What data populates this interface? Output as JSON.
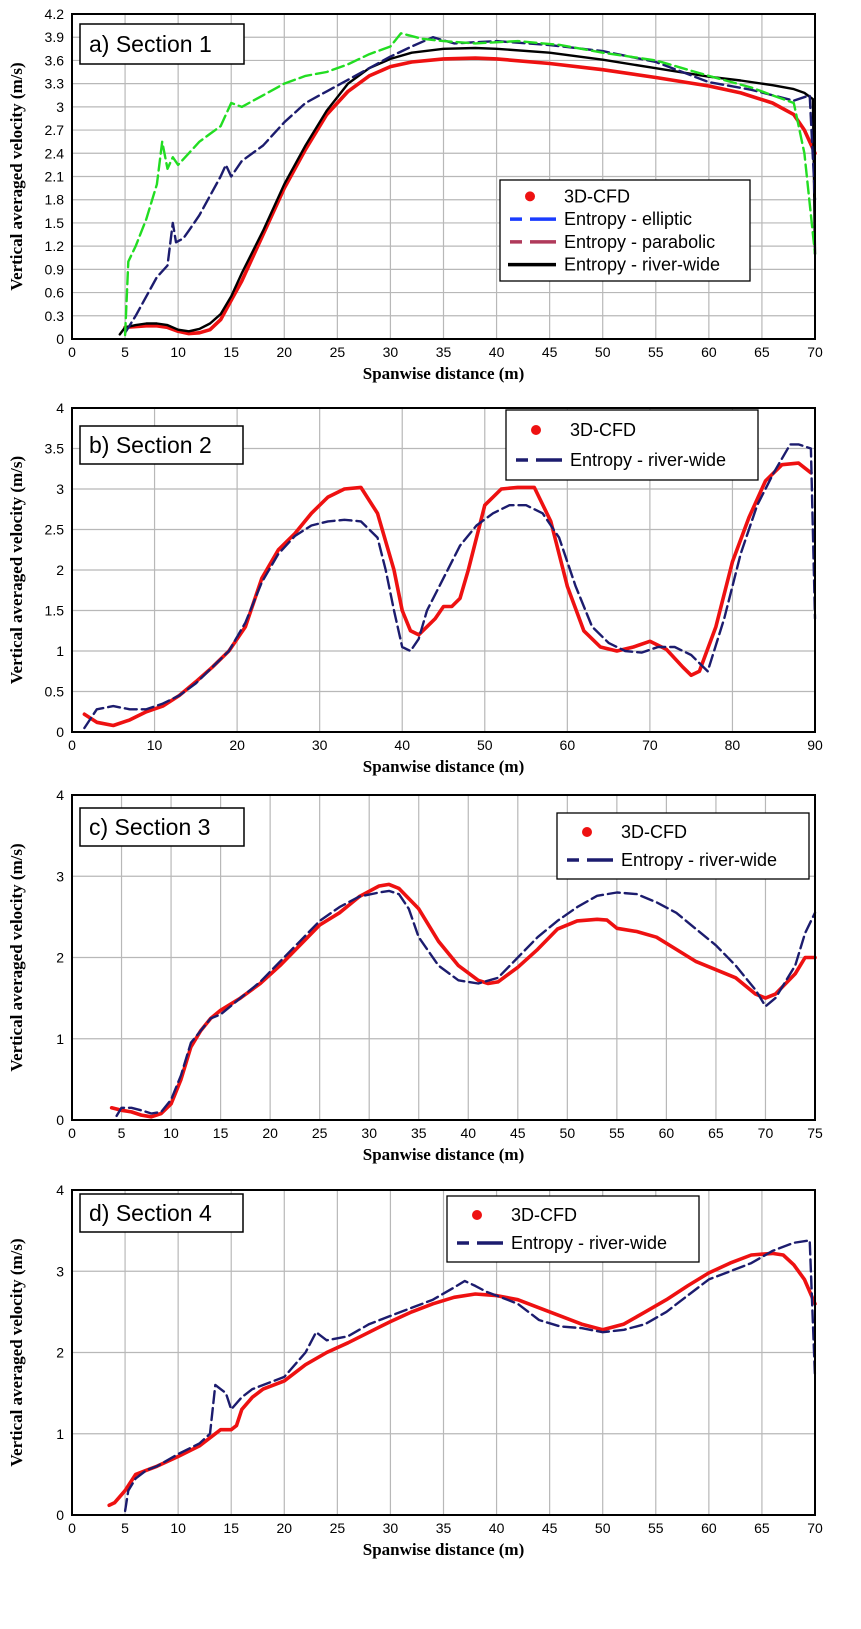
{
  "colors": {
    "cfd": "#ee1111",
    "river_wide_dash": "#1c1c6e",
    "river_wide_solid": "#000000",
    "elliptic": "#1a3cff",
    "parabolic": "#b03a5b",
    "green": "#22dd22",
    "grid": "#b8b8b8"
  },
  "chart_data": [
    {
      "type": "line",
      "panel_label": "a) Section 1",
      "xlabel": "Spanwise distance (m)",
      "ylabel": "Vertical averaged velocity (m/s)",
      "xlim": [
        0,
        70
      ],
      "ylim": [
        0,
        4.2
      ],
      "xticks": [
        "0",
        "5",
        "10",
        "15",
        "20",
        "25",
        "30",
        "35",
        "40",
        "45",
        "50",
        "55",
        "60",
        "65",
        "70"
      ],
      "yticks": [
        "0",
        "0.3",
        "0.6",
        "0.9",
        "1.2",
        "1.5",
        "1.8",
        "2.1",
        "2.4",
        "2.7",
        "3",
        "3.3",
        "3.6",
        "3.9",
        "4.2"
      ],
      "grid": true,
      "legend_position": "center-right",
      "legend": [
        {
          "label": "3D-CFD",
          "style": "dot",
          "color": "#ee1111"
        },
        {
          "label": "Entropy - elliptic",
          "style": "dash",
          "color": "#1a3cff"
        },
        {
          "label": "Entropy - parabolic",
          "style": "dash",
          "color": "#b03a5b"
        },
        {
          "label": "Entropy - river-wide",
          "style": "solid",
          "color": "#000000"
        }
      ],
      "series": [
        {
          "name": "3D-CFD",
          "color": "#ee1111",
          "style": "solid",
          "x": [
            5,
            6,
            7,
            8,
            9,
            10,
            11,
            12,
            13,
            14,
            15,
            16,
            18,
            20,
            22,
            24,
            26,
            28,
            30,
            32,
            35,
            38,
            40,
            45,
            50,
            55,
            60,
            63,
            66,
            68,
            69,
            70
          ],
          "y": [
            0.15,
            0.16,
            0.17,
            0.17,
            0.15,
            0.1,
            0.07,
            0.08,
            0.12,
            0.25,
            0.5,
            0.75,
            1.35,
            1.95,
            2.45,
            2.9,
            3.2,
            3.4,
            3.52,
            3.58,
            3.62,
            3.63,
            3.62,
            3.56,
            3.48,
            3.38,
            3.27,
            3.18,
            3.05,
            2.9,
            2.7,
            2.4
          ]
        },
        {
          "color": "#000000",
          "style": "solid",
          "x": [
            4.5,
            5,
            6,
            7,
            8,
            9,
            10,
            11,
            12,
            13,
            14,
            15,
            16,
            18,
            20,
            22,
            24,
            26,
            28,
            30,
            32,
            35,
            38,
            40,
            45,
            50,
            55,
            60,
            63,
            66,
            68,
            69,
            69.8,
            70
          ],
          "y": [
            0.06,
            0.15,
            0.18,
            0.2,
            0.2,
            0.18,
            0.12,
            0.1,
            0.13,
            0.2,
            0.32,
            0.55,
            0.85,
            1.4,
            2.0,
            2.5,
            2.95,
            3.3,
            3.5,
            3.62,
            3.7,
            3.75,
            3.76,
            3.75,
            3.7,
            3.61,
            3.5,
            3.39,
            3.34,
            3.28,
            3.23,
            3.18,
            3.1,
            1.1
          ]
        },
        {
          "color": "#1c1c6e",
          "style": "dash",
          "x": [
            5,
            6,
            7,
            8,
            9,
            9.5,
            9.8,
            10.5,
            11,
            12,
            13,
            14,
            14.5,
            15,
            16,
            18,
            20,
            22,
            24,
            26,
            28,
            30,
            32,
            34,
            36,
            40,
            45,
            50,
            55,
            60,
            64,
            68,
            69.5,
            70
          ],
          "y": [
            0.08,
            0.3,
            0.55,
            0.8,
            0.95,
            1.5,
            1.25,
            1.3,
            1.4,
            1.6,
            1.85,
            2.1,
            2.25,
            2.1,
            2.3,
            2.5,
            2.8,
            3.05,
            3.2,
            3.35,
            3.5,
            3.65,
            3.78,
            3.9,
            3.82,
            3.85,
            3.8,
            3.72,
            3.58,
            3.32,
            3.22,
            3.08,
            3.15,
            1.8
          ]
        },
        {
          "color": "#22dd22",
          "style": "dash",
          "x": [
            5,
            5.3,
            6,
            7,
            8,
            8.5,
            9,
            9.5,
            10,
            11,
            12,
            13,
            14,
            15,
            16,
            18,
            20,
            22,
            24,
            26,
            28,
            30,
            31,
            33,
            35,
            38,
            42,
            46,
            50,
            55,
            60,
            64,
            66,
            68,
            69,
            70
          ],
          "y": [
            0.05,
            1.0,
            1.2,
            1.55,
            2.0,
            2.55,
            2.2,
            2.35,
            2.25,
            2.4,
            2.55,
            2.65,
            2.75,
            3.05,
            3.0,
            3.15,
            3.3,
            3.4,
            3.45,
            3.55,
            3.68,
            3.78,
            3.95,
            3.88,
            3.85,
            3.82,
            3.85,
            3.8,
            3.7,
            3.6,
            3.4,
            3.25,
            3.15,
            3.05,
            2.4,
            1.1
          ]
        }
      ]
    },
    {
      "type": "line",
      "panel_label": "b) Section 2",
      "xlabel": "Spanwise distance (m)",
      "ylabel": "Vertical averaged velocity (m/s)",
      "xlim": [
        0,
        90
      ],
      "ylim": [
        0,
        4
      ],
      "xticks": [
        "0",
        "10",
        "20",
        "30",
        "40",
        "50",
        "60",
        "70",
        "80",
        "90"
      ],
      "yticks": [
        "0",
        "0.5",
        "1",
        "1.5",
        "2",
        "2.5",
        "3",
        "3.5",
        "4"
      ],
      "grid": true,
      "legend_position": "top-right",
      "legend": [
        {
          "label": "3D-CFD",
          "style": "dot",
          "color": "#ee1111"
        },
        {
          "label": "Entropy - river-wide",
          "style": "dash",
          "color": "#1c1c6e"
        }
      ],
      "series": [
        {
          "name": "3D-CFD",
          "color": "#ee1111",
          "style": "solid",
          "x": [
            1.5,
            3,
            5,
            7,
            9,
            11,
            13,
            15,
            17,
            19,
            21,
            23,
            25,
            27,
            29,
            31,
            33,
            35,
            37,
            39,
            40,
            41,
            42,
            43,
            44,
            45,
            46,
            47,
            48,
            50,
            52,
            54,
            56,
            58,
            60,
            62,
            64,
            66,
            68,
            70,
            72,
            74,
            75,
            76,
            78,
            80,
            82,
            84,
            86,
            88,
            89.5
          ],
          "y": [
            0.22,
            0.12,
            0.08,
            0.15,
            0.25,
            0.32,
            0.45,
            0.62,
            0.8,
            1.0,
            1.3,
            1.9,
            2.25,
            2.45,
            2.7,
            2.9,
            3.0,
            3.02,
            2.7,
            2.0,
            1.5,
            1.25,
            1.2,
            1.3,
            1.4,
            1.55,
            1.55,
            1.65,
            2.0,
            2.8,
            3.0,
            3.02,
            3.02,
            2.6,
            1.8,
            1.25,
            1.05,
            1.0,
            1.05,
            1.12,
            1.02,
            0.8,
            0.7,
            0.75,
            1.3,
            2.1,
            2.65,
            3.1,
            3.3,
            3.32,
            3.2
          ]
        },
        {
          "color": "#1c1c6e",
          "style": "dash",
          "x": [
            1.5,
            3,
            5,
            7,
            9,
            11,
            13,
            15,
            17,
            19,
            21,
            23,
            25,
            27,
            29,
            31,
            33,
            35,
            37,
            38,
            39,
            40,
            41,
            42,
            43,
            45,
            47,
            49,
            51,
            53,
            55,
            57,
            59,
            61,
            63,
            65,
            67,
            69,
            71,
            73,
            75,
            77,
            79,
            81,
            83,
            85,
            87,
            88,
            89.5,
            90
          ],
          "y": [
            0.05,
            0.28,
            0.32,
            0.28,
            0.28,
            0.35,
            0.45,
            0.6,
            0.8,
            1.0,
            1.35,
            1.85,
            2.2,
            2.42,
            2.55,
            2.6,
            2.62,
            2.6,
            2.4,
            2.0,
            1.5,
            1.05,
            1.0,
            1.15,
            1.5,
            1.9,
            2.3,
            2.55,
            2.7,
            2.8,
            2.8,
            2.7,
            2.4,
            1.8,
            1.3,
            1.1,
            1.0,
            0.98,
            1.05,
            1.05,
            0.95,
            0.75,
            1.4,
            2.2,
            2.8,
            3.2,
            3.55,
            3.55,
            3.5,
            1.4
          ]
        }
      ]
    },
    {
      "type": "line",
      "panel_label": "c) Section 3",
      "xlabel": "Spanwise distance (m)",
      "ylabel": "Vertical averaged velocity (m/s)",
      "xlim": [
        0,
        75
      ],
      "ylim": [
        0,
        4
      ],
      "xticks": [
        "0",
        "5",
        "10",
        "15",
        "20",
        "25",
        "30",
        "35",
        "40",
        "45",
        "50",
        "55",
        "60",
        "65",
        "70",
        "75"
      ],
      "yticks": [
        "0",
        "1",
        "2",
        "3",
        "4"
      ],
      "grid": true,
      "legend_position": "top-right",
      "legend": [
        {
          "label": "3D-CFD",
          "style": "dot",
          "color": "#ee1111"
        },
        {
          "label": "Entropy - river-wide",
          "style": "dash",
          "color": "#1c1c6e"
        }
      ],
      "series": [
        {
          "name": "3D-CFD",
          "color": "#ee1111",
          "style": "solid",
          "x": [
            4,
            5,
            6,
            7,
            8,
            9,
            10,
            11,
            12,
            13,
            14,
            15,
            17,
            19,
            21,
            23,
            25,
            27,
            29,
            31,
            32,
            33,
            35,
            37,
            39,
            41,
            42,
            43,
            45,
            47,
            49,
            51,
            53,
            54,
            55,
            57,
            59,
            61,
            63,
            65,
            67,
            69,
            70,
            71,
            73,
            74,
            75
          ],
          "y": [
            0.15,
            0.12,
            0.1,
            0.06,
            0.04,
            0.08,
            0.2,
            0.5,
            0.9,
            1.1,
            1.25,
            1.35,
            1.5,
            1.68,
            1.9,
            2.15,
            2.4,
            2.55,
            2.75,
            2.88,
            2.9,
            2.85,
            2.6,
            2.2,
            1.9,
            1.72,
            1.68,
            1.7,
            1.88,
            2.1,
            2.35,
            2.45,
            2.47,
            2.46,
            2.36,
            2.32,
            2.25,
            2.1,
            1.95,
            1.85,
            1.75,
            1.55,
            1.5,
            1.55,
            1.8,
            2.0,
            2.0
          ]
        },
        {
          "color": "#1c1c6e",
          "style": "dash",
          "x": [
            4.5,
            5,
            6,
            7,
            8,
            9,
            10,
            11,
            12,
            13,
            14,
            15,
            17,
            19,
            21,
            23,
            25,
            27,
            29,
            31,
            32,
            33,
            34,
            35,
            37,
            39,
            41,
            43,
            45,
            47,
            49,
            51,
            53,
            55,
            57,
            59,
            61,
            63,
            65,
            67,
            69,
            70,
            71,
            73,
            74,
            75
          ],
          "y": [
            0.05,
            0.15,
            0.15,
            0.12,
            0.08,
            0.1,
            0.25,
            0.55,
            0.95,
            1.1,
            1.25,
            1.3,
            1.5,
            1.7,
            1.95,
            2.2,
            2.45,
            2.62,
            2.75,
            2.8,
            2.82,
            2.78,
            2.6,
            2.25,
            1.9,
            1.72,
            1.68,
            1.75,
            2.0,
            2.25,
            2.45,
            2.62,
            2.76,
            2.8,
            2.78,
            2.68,
            2.55,
            2.35,
            2.15,
            1.9,
            1.6,
            1.4,
            1.5,
            1.9,
            2.3,
            2.55
          ]
        }
      ]
    },
    {
      "type": "line",
      "panel_label": "d) Section 4",
      "xlabel": "Spanwise distance (m)",
      "ylabel": "Vertical averaged velocity (m/s)",
      "xlim": [
        0,
        70
      ],
      "ylim": [
        0,
        4
      ],
      "xticks": [
        "0",
        "5",
        "10",
        "15",
        "20",
        "25",
        "30",
        "35",
        "40",
        "45",
        "50",
        "55",
        "60",
        "65",
        "70"
      ],
      "yticks": [
        "0",
        "1",
        "2",
        "3",
        "4"
      ],
      "grid": true,
      "legend_position": "top-right",
      "legend": [
        {
          "label": "3D-CFD",
          "style": "dot",
          "color": "#ee1111"
        },
        {
          "label": "Entropy - river-wide",
          "style": "dash",
          "color": "#1c1c6e"
        }
      ],
      "series": [
        {
          "name": "3D-CFD",
          "color": "#ee1111",
          "style": "solid",
          "x": [
            3.5,
            4,
            5,
            6,
            7,
            8,
            10,
            12,
            13,
            14,
            15,
            15.5,
            16,
            17,
            18,
            20,
            22,
            24,
            26,
            28,
            30,
            32,
            34,
            36,
            38,
            40,
            42,
            44,
            46,
            48,
            50,
            52,
            54,
            56,
            58,
            60,
            62,
            64,
            66,
            67,
            68,
            69,
            70
          ],
          "y": [
            0.12,
            0.15,
            0.3,
            0.5,
            0.55,
            0.6,
            0.72,
            0.85,
            0.95,
            1.05,
            1.05,
            1.1,
            1.3,
            1.45,
            1.55,
            1.65,
            1.85,
            2.0,
            2.12,
            2.25,
            2.38,
            2.5,
            2.6,
            2.68,
            2.72,
            2.7,
            2.65,
            2.55,
            2.45,
            2.35,
            2.28,
            2.35,
            2.5,
            2.65,
            2.82,
            2.98,
            3.1,
            3.2,
            3.22,
            3.2,
            3.08,
            2.9,
            2.6
          ]
        },
        {
          "color": "#1c1c6e",
          "style": "dash",
          "x": [
            5,
            5.3,
            6,
            7,
            8,
            10,
            12,
            13,
            13.5,
            14,
            14.5,
            15,
            16,
            17,
            18,
            20,
            22,
            23,
            24,
            26,
            28,
            30,
            32,
            34,
            36,
            37,
            38,
            39,
            40,
            42,
            44,
            46,
            48,
            50,
            52,
            54,
            56,
            58,
            60,
            62,
            64,
            66,
            68,
            69.5,
            70
          ],
          "y": [
            0.05,
            0.3,
            0.45,
            0.55,
            0.6,
            0.75,
            0.88,
            1.0,
            1.6,
            1.55,
            1.5,
            1.3,
            1.45,
            1.55,
            1.6,
            1.7,
            2.0,
            2.25,
            2.15,
            2.2,
            2.35,
            2.45,
            2.55,
            2.65,
            2.8,
            2.88,
            2.82,
            2.75,
            2.7,
            2.6,
            2.4,
            2.32,
            2.3,
            2.25,
            2.28,
            2.35,
            2.5,
            2.7,
            2.9,
            3.0,
            3.1,
            3.25,
            3.35,
            3.38,
            1.7
          ]
        }
      ]
    }
  ]
}
